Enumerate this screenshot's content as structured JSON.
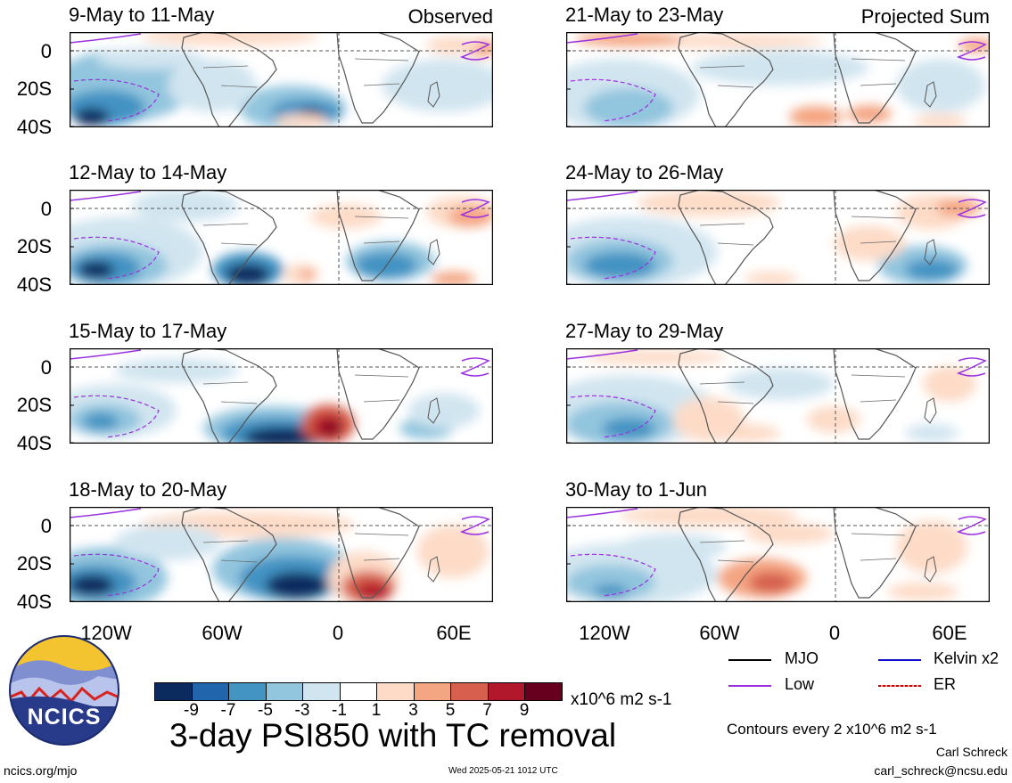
{
  "titles": {
    "observed": "Observed",
    "projected": "Projected Sum",
    "main": "3-day PSI850 with TC removal",
    "units": "x10^6 m2 s-1",
    "contours": "Contours every 2 x10^6 m2 s-1"
  },
  "panels": {
    "left": [
      "9-May to 11-May",
      "12-May to 14-May",
      "15-May to 17-May",
      "18-May to 20-May"
    ],
    "right": [
      "21-May to 23-May",
      "24-May to 26-May",
      "27-May to 29-May",
      "30-May to 1-Jun"
    ]
  },
  "lat_labels": [
    "0",
    "20S",
    "40S"
  ],
  "lon_labels": [
    "120W",
    "60W",
    "0",
    "60E"
  ],
  "colorbar": {
    "colors": [
      "#0b2b5e",
      "#2166ac",
      "#4393c3",
      "#92c5de",
      "#d1e5f0",
      "#ffffff",
      "#fddbc7",
      "#f4a582",
      "#d6604d",
      "#b2182b",
      "#67001f"
    ],
    "labels": [
      "-9",
      "-7",
      "-5",
      "-3",
      "-1",
      "1",
      "3",
      "5",
      "7",
      "9"
    ]
  },
  "legend": {
    "mjo": "MJO",
    "kelvin": "Kelvin x2",
    "low": "Low",
    "er": "ER",
    "mjo_color": "#000000",
    "kelvin_color": "#1010cc",
    "low_color": "#9b30e0",
    "er_color": "#cc0000"
  },
  "logo": {
    "text": "NCICS"
  },
  "footer": {
    "url": "ncics.org/mjo",
    "timestamp": "Wed 2025-05-21 1012 UTC",
    "author": "Carl Schreck",
    "email": "carl_schreck@ncsu.edu"
  }
}
